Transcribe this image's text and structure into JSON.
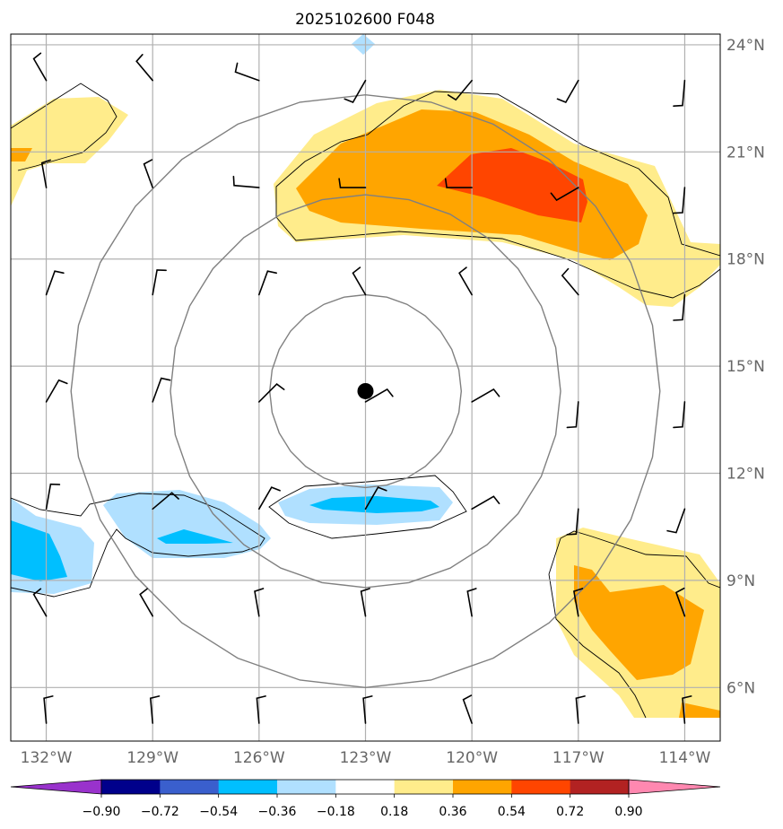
{
  "title": "2025102600 F048",
  "map": {
    "lon_range": [
      -133.0,
      -113.0
    ],
    "lat_range": [
      4.5,
      24.3
    ],
    "lat_labels": [
      "24°N",
      "21°N",
      "18°N",
      "15°N",
      "12°N",
      "9°N",
      "6°N"
    ],
    "lat_values": [
      24,
      21,
      18,
      15,
      12,
      9,
      6
    ],
    "lon_labels": [
      "132°W",
      "129°W",
      "126°W",
      "123°W",
      "120°W",
      "117°W",
      "114°W"
    ],
    "lon_values": [
      -132,
      -129,
      -126,
      -123,
      -120,
      -117,
      -114
    ],
    "center_marker": {
      "lon": -123.0,
      "lat": 14.3
    },
    "range_rings_deg": [
      2.7,
      5.5,
      8.3
    ]
  },
  "colorbar": {
    "tick_labels": [
      "−0.90",
      "−0.72",
      "−0.54",
      "−0.36",
      "−0.18",
      "0.18",
      "0.36",
      "0.54",
      "0.72",
      "0.90"
    ],
    "colors": {
      "under": "#9932cc",
      "bins": [
        "#00008b",
        "#3a5fcd",
        "#00bfff",
        "#b0e0ff",
        "#ffffff",
        "#ffec8b",
        "#ffa500",
        "#ff4500",
        "#b22222"
      ],
      "over": "#ff88b0"
    }
  },
  "colors": {
    "gridline": "#b0b0b0",
    "ring": "#808080",
    "coast": "#000000"
  }
}
